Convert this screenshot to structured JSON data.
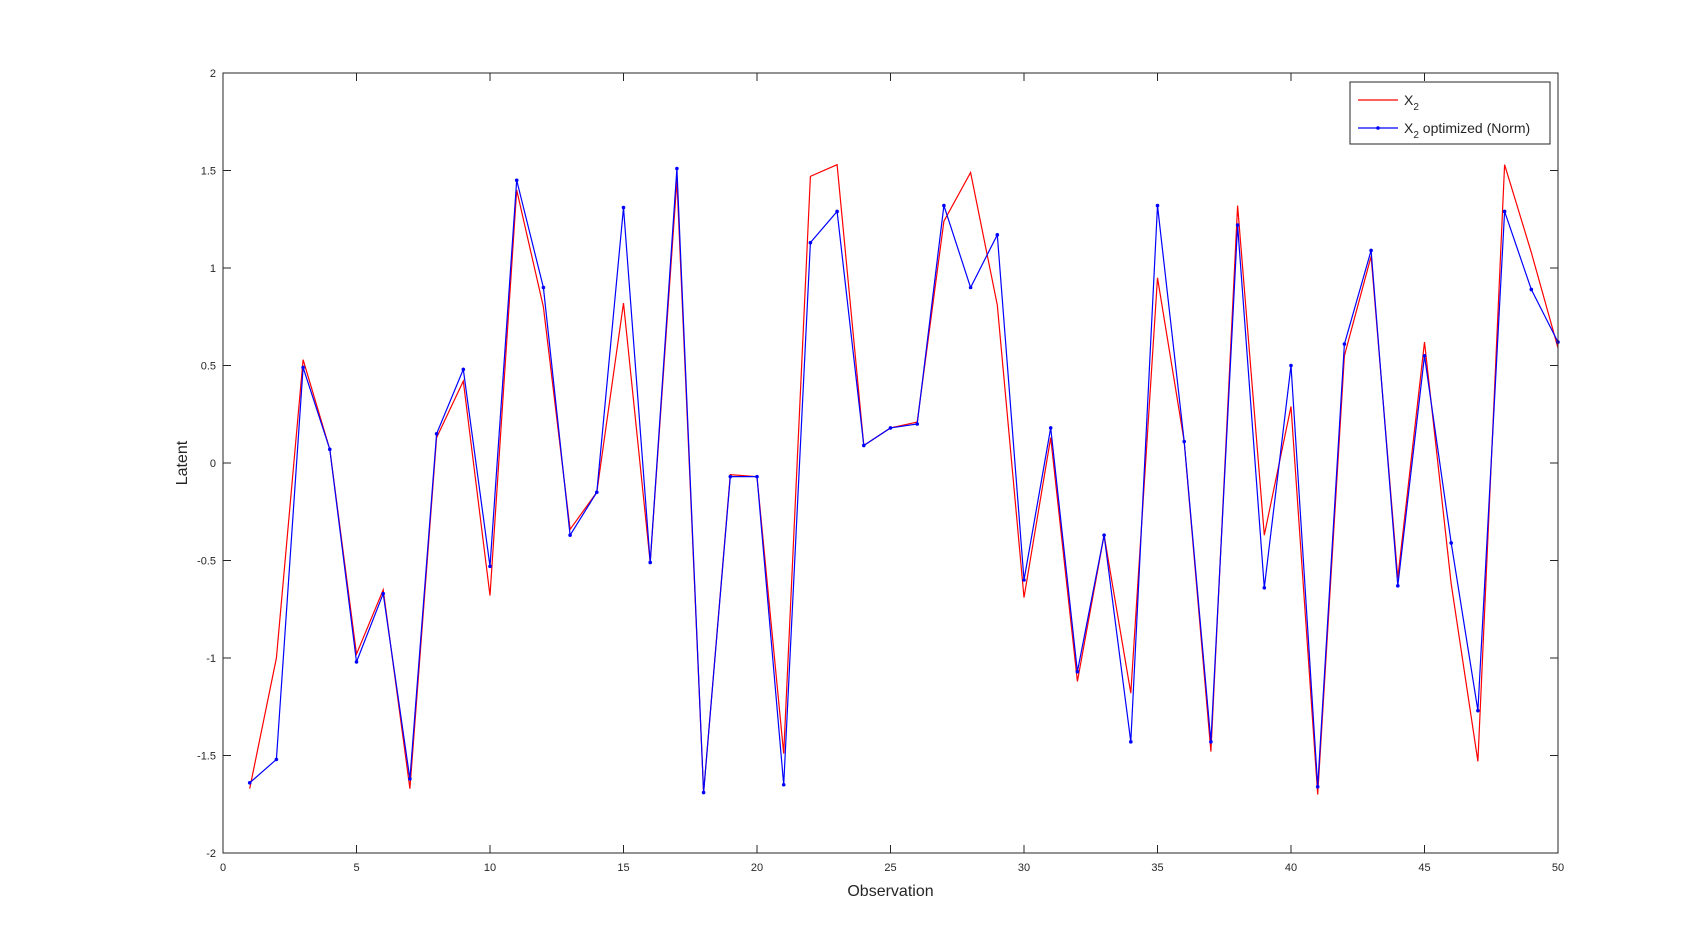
{
  "chart_data": {
    "type": "line",
    "title": "",
    "xlabel": "Observation",
    "ylabel": "Latent",
    "xlim": [
      0,
      50
    ],
    "ylim": [
      -2,
      2
    ],
    "xticks": [
      0,
      5,
      10,
      15,
      20,
      25,
      30,
      35,
      40,
      45,
      50
    ],
    "yticks": [
      -2,
      -1.5,
      -1,
      -0.5,
      0,
      0.5,
      1,
      1.5,
      2
    ],
    "xtick_labels": [
      "0",
      "5",
      "10",
      "15",
      "20",
      "25",
      "30",
      "35",
      "40",
      "45",
      "50"
    ],
    "ytick_labels": [
      "-2",
      "-1.5",
      "-1",
      "-0.5",
      "0",
      "0.5",
      "1",
      "1.5",
      "2"
    ],
    "grid": false,
    "box": true,
    "legend_position": "top-right",
    "x": [
      1,
      2,
      3,
      4,
      5,
      6,
      7,
      8,
      9,
      10,
      11,
      12,
      13,
      14,
      15,
      16,
      17,
      18,
      19,
      20,
      21,
      22,
      23,
      24,
      25,
      26,
      27,
      28,
      29,
      30,
      31,
      32,
      33,
      34,
      35,
      36,
      37,
      38,
      39,
      40,
      41,
      42,
      43,
      44,
      45,
      46,
      47,
      48,
      49,
      50
    ],
    "series": [
      {
        "name_main": "X",
        "name_sub": "2",
        "name_suffix": "",
        "color": "#ff0000",
        "marker": "none",
        "values": [
          -1.67,
          -1.0,
          0.53,
          0.07,
          -0.98,
          -0.65,
          -1.67,
          0.13,
          0.42,
          -0.68,
          1.4,
          0.8,
          -0.34,
          -0.15,
          0.82,
          -0.51,
          1.45,
          -1.69,
          -0.06,
          -0.07,
          -1.49,
          1.47,
          1.53,
          0.09,
          0.18,
          0.21,
          1.24,
          1.49,
          0.81,
          -0.69,
          0.13,
          -1.12,
          -0.37,
          -1.18,
          0.95,
          0.11,
          -1.48,
          1.32,
          -0.37,
          0.29,
          -1.7,
          0.55,
          1.06,
          -0.59,
          0.62,
          -0.62,
          -1.53,
          1.53,
          1.08,
          0.59
        ]
      },
      {
        "name_main": "X",
        "name_sub": "2",
        "name_suffix": " optimized (Norm)",
        "color": "#0000ff",
        "marker": "point",
        "values": [
          -1.64,
          -1.52,
          0.49,
          0.07,
          -1.02,
          -0.67,
          -1.62,
          0.15,
          0.48,
          -0.53,
          1.45,
          0.9,
          -0.37,
          -0.15,
          1.31,
          -0.51,
          1.51,
          -1.69,
          -0.07,
          -0.07,
          -1.65,
          1.13,
          1.29,
          0.09,
          0.18,
          0.2,
          1.32,
          0.9,
          1.17,
          -0.6,
          0.18,
          -1.07,
          -0.37,
          -1.43,
          1.32,
          0.11,
          -1.43,
          1.22,
          -0.64,
          0.5,
          -1.66,
          0.61,
          1.09,
          -0.63,
          0.55,
          -0.41,
          -1.27,
          1.29,
          0.89,
          0.62
        ]
      }
    ]
  }
}
